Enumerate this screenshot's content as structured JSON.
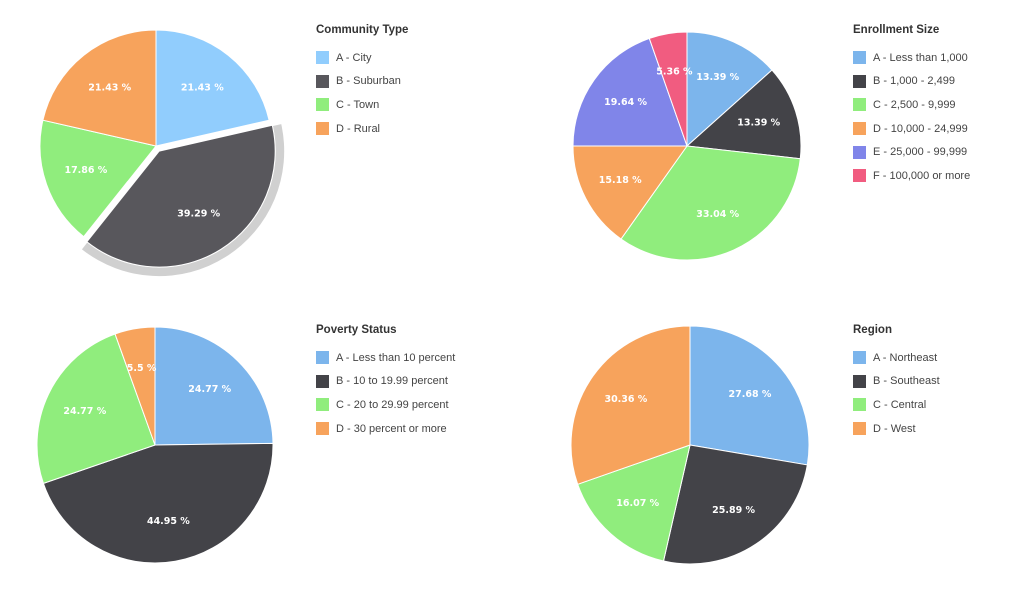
{
  "chart_data": [
    {
      "type": "pie",
      "title": "Community Type",
      "categories": [
        "A - City",
        "B - Suburban",
        "C - Town",
        "D - Rural"
      ],
      "values": [
        21.43,
        39.29,
        17.86,
        21.43
      ],
      "labels": [
        "21.43 %",
        "39.29 %",
        "17.86 %",
        "21.43 %"
      ],
      "colors": [
        "#91cdfd",
        "#58575c",
        "#90ed7d",
        "#f7a35c"
      ],
      "highlighted_slice": "B - Suburban"
    },
    {
      "type": "pie",
      "title": "Enrollment Size",
      "categories": [
        "A - Less than 1,000",
        "B - 1,000 - 2,499",
        "C - 2,500 - 9,999",
        "D - 10,000 - 24,999",
        "E - 25,000 - 99,999",
        "F - 100,000 or more"
      ],
      "values": [
        13.39,
        13.39,
        33.04,
        15.18,
        19.64,
        5.36
      ],
      "labels": [
        "13.39 %",
        "13.39 %",
        "33.04 %",
        "15.18 %",
        "19.64 %",
        "5.36 %"
      ],
      "colors": [
        "#7cb5ec",
        "#434348",
        "#90ed7d",
        "#f7a35c",
        "#8085e9",
        "#f15c80"
      ]
    },
    {
      "type": "pie",
      "title": "Poverty Status",
      "categories": [
        "A - Less than 10 percent",
        "B - 10 to 19.99 percent",
        "C - 20 to 29.99 percent",
        "D - 30 percent or more"
      ],
      "values": [
        24.77,
        44.95,
        24.77,
        5.5
      ],
      "labels": [
        "24.77 %",
        "44.95 %",
        "24.77 %",
        "5.5 %"
      ],
      "colors": [
        "#7cb5ec",
        "#434348",
        "#90ed7d",
        "#f7a35c"
      ]
    },
    {
      "type": "pie",
      "title": "Region",
      "categories": [
        "A - Northeast",
        "B - Southeast",
        "C - Central",
        "D - West"
      ],
      "values": [
        27.68,
        25.89,
        16.07,
        30.36
      ],
      "labels": [
        "27.68 %",
        "25.89 %",
        "16.07 %",
        "30.36 %"
      ],
      "colors": [
        "#7cb5ec",
        "#434348",
        "#90ed7d",
        "#f7a35c"
      ]
    }
  ]
}
